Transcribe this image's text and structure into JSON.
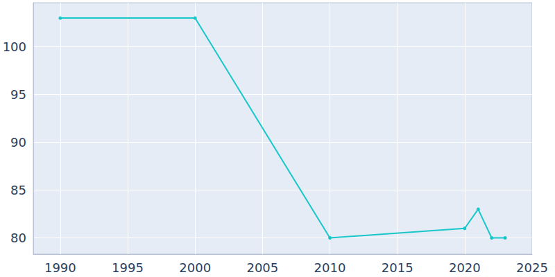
{
  "chart_data": {
    "type": "line",
    "x": [
      1990,
      2000,
      2010,
      2020,
      2021,
      2022,
      2023
    ],
    "values": [
      103,
      103,
      80,
      81,
      83,
      80,
      80
    ],
    "color": "#17c7ca",
    "marker": "circle",
    "xlim": [
      1988,
      2025
    ],
    "xticks": [
      1990,
      1995,
      2000,
      2005,
      2010,
      2015,
      2020,
      2025
    ],
    "ylim": [
      78.3,
      104.6
    ],
    "yticks": [
      80,
      85,
      90,
      95,
      100
    ],
    "grid": true
  }
}
